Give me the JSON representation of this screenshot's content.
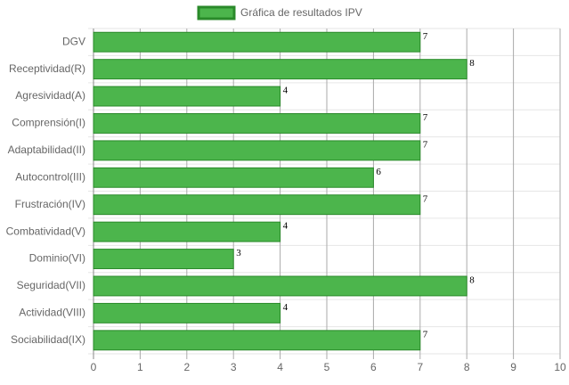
{
  "chart_data": {
    "type": "bar",
    "orientation": "horizontal",
    "categories": [
      "DGV",
      "Receptividad(R)",
      "Agresividad(A)",
      "Comprensión(I)",
      "Adaptabilidad(II)",
      "Autocontrol(III)",
      "Frustración(IV)",
      "Combatividad(V)",
      "Dominio(VI)",
      "Seguridad(VII)",
      "Actividad(VIII)",
      "Sociabilidad(IX)"
    ],
    "series": [
      {
        "name": "Gráfica de resultados IPV",
        "color": "#4cb54c",
        "border_color": "#2a8a2a",
        "values": [
          7,
          8,
          4,
          7,
          7,
          6,
          7,
          4,
          3,
          8,
          4,
          7
        ]
      }
    ],
    "xlim": [
      0,
      10
    ],
    "xticks": [
      0,
      1,
      2,
      3,
      4,
      5,
      6,
      7,
      8,
      9,
      10
    ],
    "grid": true,
    "legend": "top"
  }
}
